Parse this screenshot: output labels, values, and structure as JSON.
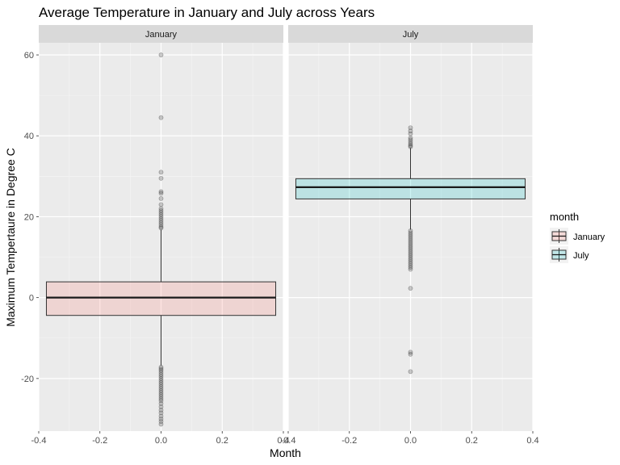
{
  "chart_data": {
    "type": "boxplot",
    "title": "Average Temperature in January and July across Years",
    "xlabel": "Month",
    "ylabel": "Maximum Tempertaure in Degree C",
    "xlim": [
      -0.4,
      0.4
    ],
    "ylim": [
      -33,
      63
    ],
    "x_ticks": [
      "-0.4",
      "-0.2",
      "0.0",
      "0.2",
      "0.4"
    ],
    "y_ticks": [
      "-20",
      "0",
      "20",
      "40",
      "60"
    ],
    "y_tick_values": [
      -20,
      0,
      20,
      40,
      60
    ],
    "x_tick_values": [
      -0.4,
      -0.2,
      0.0,
      0.2,
      0.4
    ],
    "legend": {
      "title": "month",
      "placement": "right",
      "entries": [
        "January",
        "July"
      ]
    },
    "grid": true,
    "panels": [
      {
        "facet": "January",
        "fill": "#f8766d",
        "box": {
          "q1": -4.4,
          "median": 0,
          "q3": 3.9,
          "whisker_low": -16.8,
          "whisker_high": 16.8
        },
        "outliers": [
          60,
          44.5,
          31,
          29.5,
          26.2,
          25.8,
          24.5,
          23,
          22,
          21.5,
          21,
          20.5,
          20,
          19.5,
          19,
          18.5,
          18,
          17.5,
          17.2,
          -17.2,
          -17.6,
          -18,
          -18.5,
          -19,
          -19.5,
          -20,
          -20.5,
          -21,
          -21.5,
          -22,
          -22.5,
          -23,
          -23.5,
          -24,
          -24.5,
          -25,
          -25.5,
          -26.2,
          -27,
          -27.8,
          -28.5,
          -29.3,
          -30,
          -30.6,
          -31.3
        ]
      },
      {
        "facet": "July",
        "fill": "#00bfc4",
        "box": {
          "q1": 24.4,
          "median": 27.3,
          "q3": 29.4,
          "whisker_low": 16.8,
          "whisker_high": 37
        },
        "outliers": [
          42,
          41.2,
          40.5,
          39.5,
          39,
          38.5,
          38,
          37.6,
          37.3,
          16.5,
          16,
          15.5,
          15,
          14.5,
          14,
          13.5,
          13,
          12.5,
          12,
          11.5,
          11,
          10.5,
          10,
          9.5,
          9,
          8.5,
          8,
          7.5,
          7,
          2.3,
          -13.5,
          -14,
          -18.3
        ]
      }
    ]
  }
}
